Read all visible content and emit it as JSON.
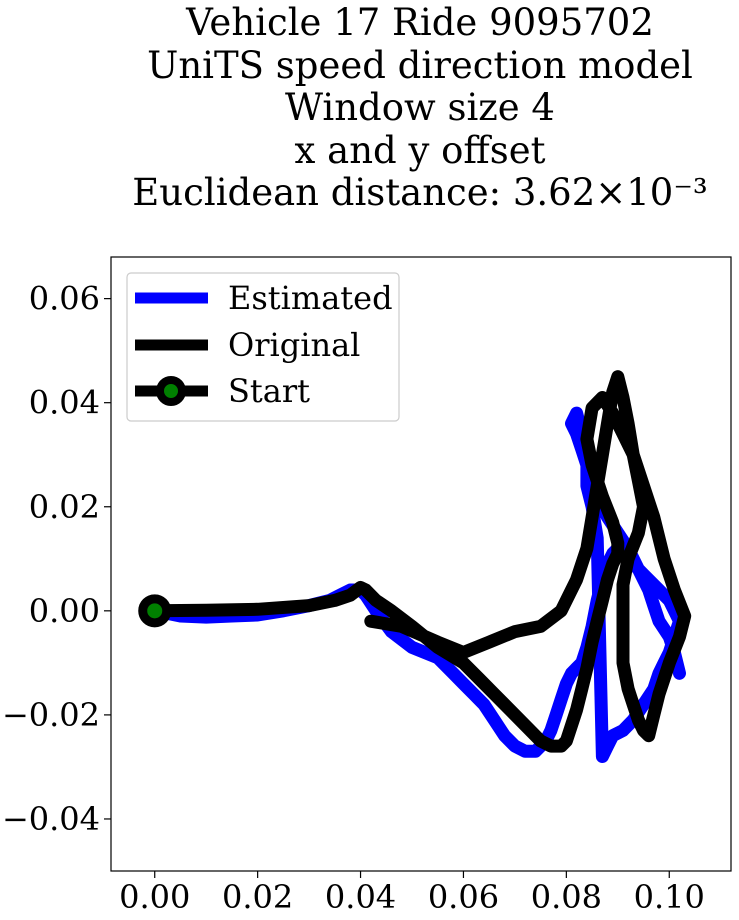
{
  "chart_data": {
    "type": "line",
    "title_lines": [
      "Vehicle 17 Ride 9095702",
      "UniTS speed direction model",
      "Window size 4",
      "x and y offset",
      "Euclidean distance: 3.62×10⁻³"
    ],
    "xlabel": "",
    "ylabel": "",
    "xlim": [
      -0.0085,
      0.112
    ],
    "ylim": [
      -0.05,
      0.068
    ],
    "xticks": [
      0.0,
      0.02,
      0.04,
      0.06,
      0.08,
      0.1
    ],
    "xtick_labels": [
      "0.00",
      "0.02",
      "0.04",
      "0.06",
      "0.08",
      "0.10"
    ],
    "yticks": [
      -0.04,
      -0.02,
      0.0,
      0.02,
      0.04,
      0.06
    ],
    "ytick_labels": [
      "−0.04",
      "−0.02",
      "0.00",
      "0.02",
      "0.04",
      "0.06"
    ],
    "grid": false,
    "legend_position": "upper left",
    "colors": {
      "estimated": "#0000ff",
      "original": "#000000",
      "start_marker_fill": "#008000"
    },
    "series": [
      {
        "name": "Estimated",
        "x": [
          0.0,
          0.005,
          0.01,
          0.015,
          0.02,
          0.025,
          0.03,
          0.034,
          0.036,
          0.038,
          0.04,
          0.041,
          0.043,
          0.046,
          0.05,
          0.055,
          0.058,
          0.06,
          0.062,
          0.064,
          0.066,
          0.068,
          0.07,
          0.072,
          0.074,
          0.076,
          0.077,
          0.078,
          0.079,
          0.08,
          0.081,
          0.082,
          0.083,
          0.084,
          0.085,
          0.086,
          0.087,
          0.088,
          0.089,
          0.09,
          0.092,
          0.095,
          0.098,
          0.1,
          0.101,
          0.102,
          0.101,
          0.1,
          0.099,
          0.098,
          0.097,
          0.095,
          0.093,
          0.091,
          0.089,
          0.088,
          0.087,
          0.086,
          0.085,
          0.084,
          0.084,
          0.083,
          0.082,
          0.081,
          0.082,
          0.083,
          0.084,
          0.085,
          0.086,
          0.088,
          0.09,
          0.092,
          0.094,
          0.096,
          0.097,
          0.098,
          0.1,
          0.101,
          0.102
        ],
        "y": [
          0.0,
          -0.001,
          -0.0012,
          -0.001,
          -0.0008,
          0.0,
          0.001,
          0.002,
          0.003,
          0.004,
          0.004,
          0.003,
          0.0,
          -0.004,
          -0.007,
          -0.009,
          -0.012,
          -0.014,
          -0.016,
          -0.018,
          -0.021,
          -0.024,
          -0.026,
          -0.027,
          -0.027,
          -0.025,
          -0.023,
          -0.02,
          -0.017,
          -0.014,
          -0.012,
          -0.011,
          -0.01,
          -0.007,
          -0.003,
          0.002,
          0.006,
          0.009,
          0.011,
          0.012,
          0.01,
          0.007,
          0.004,
          0.002,
          0.0,
          -0.002,
          -0.005,
          -0.008,
          -0.01,
          -0.012,
          -0.015,
          -0.018,
          -0.021,
          -0.023,
          -0.024,
          -0.026,
          -0.028,
          0.014,
          0.02,
          0.024,
          0.028,
          0.031,
          0.034,
          0.036,
          0.038,
          0.034,
          0.03,
          0.026,
          0.022,
          0.018,
          0.015,
          0.012,
          0.008,
          0.004,
          0.001,
          -0.002,
          -0.005,
          -0.008,
          -0.012
        ]
      },
      {
        "name": "Original",
        "x": [
          0.0,
          0.01,
          0.02,
          0.03,
          0.035,
          0.038,
          0.04,
          0.041,
          0.043,
          0.046,
          0.05,
          0.055,
          0.06,
          0.063,
          0.066,
          0.069,
          0.072,
          0.075,
          0.077,
          0.079,
          0.08,
          0.081,
          0.082,
          0.083,
          0.084,
          0.085,
          0.086,
          0.087,
          0.088,
          0.089,
          0.09,
          0.09,
          0.089,
          0.087,
          0.085,
          0.084,
          0.085,
          0.087,
          0.089,
          0.091,
          0.093,
          0.095,
          0.097,
          0.099,
          0.101,
          0.103,
          0.102,
          0.1,
          0.098,
          0.097,
          0.096,
          0.095,
          0.094,
          0.093,
          0.092,
          0.091,
          0.091,
          0.092,
          0.094,
          0.095,
          0.094,
          0.093,
          0.092,
          0.091,
          0.09,
          0.089,
          0.088,
          0.087,
          0.086,
          0.085,
          0.084,
          0.082,
          0.079,
          0.075,
          0.07,
          0.065,
          0.06,
          0.055,
          0.048,
          0.042
        ],
        "y": [
          0.0,
          0.0001,
          0.0003,
          0.001,
          0.002,
          0.003,
          0.0045,
          0.004,
          0.002,
          0.0,
          -0.003,
          -0.007,
          -0.01,
          -0.013,
          -0.016,
          -0.019,
          -0.022,
          -0.025,
          -0.026,
          -0.026,
          -0.025,
          -0.022,
          -0.019,
          -0.015,
          -0.011,
          -0.006,
          -0.002,
          0.002,
          0.006,
          0.009,
          0.011,
          0.013,
          0.017,
          0.022,
          0.028,
          0.033,
          0.039,
          0.041,
          0.038,
          0.034,
          0.03,
          0.024,
          0.018,
          0.01,
          0.004,
          -0.001,
          -0.005,
          -0.01,
          -0.016,
          -0.02,
          -0.024,
          -0.023,
          -0.021,
          -0.018,
          -0.015,
          -0.01,
          0.005,
          0.01,
          0.015,
          0.02,
          0.025,
          0.03,
          0.036,
          0.041,
          0.045,
          0.042,
          0.036,
          0.03,
          0.024,
          0.018,
          0.012,
          0.006,
          0.0,
          -0.003,
          -0.004,
          -0.006,
          -0.008,
          -0.006,
          -0.003,
          -0.002
        ]
      }
    ],
    "start_point": {
      "name": "Start",
      "x": 0.0,
      "y": 0.0
    }
  }
}
